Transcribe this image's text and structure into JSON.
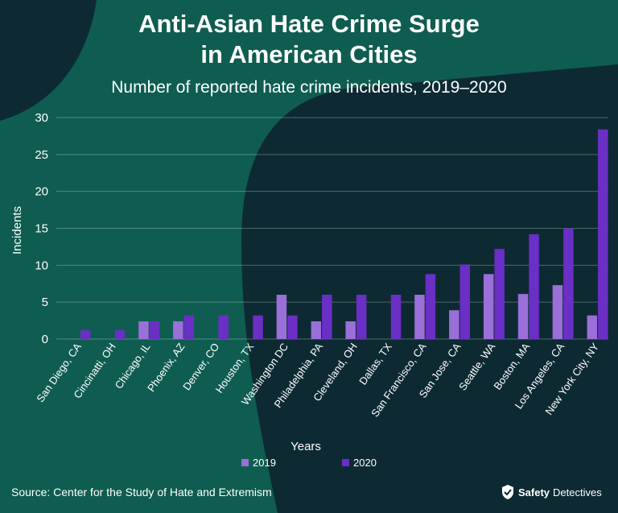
{
  "title_line1": "Anti-Asian Hate Crime Surge",
  "title_line2": "in American Cities",
  "subtitle": "Number of reported hate crime incidents, 2019–2020",
  "source": "Source: Center for the Study of Hate and Extremism",
  "brand": {
    "part1": "Safety",
    "part2": "Detectives",
    "logo_icon": "shield-logo-icon"
  },
  "colors": {
    "background_dark": "#0d2a33",
    "background_green": "#0f5d50",
    "series_2019": "#9a6fd8",
    "series_2020": "#6a2fc4",
    "text": "#ffffff"
  },
  "chart_data": {
    "type": "bar",
    "title": "Anti-Asian Hate Crime Surge in American Cities",
    "subtitle": "Number of reported hate crime incidents, 2019–2020",
    "xlabel": "Years",
    "ylabel": "Incidents",
    "ylim": [
      0,
      30
    ],
    "yticks": [
      0,
      5,
      10,
      15,
      20,
      25,
      30
    ],
    "grid": true,
    "legend_position": "bottom",
    "categories": [
      "San Diego, CA",
      "Cincinatti, OH",
      "Chicago, IL",
      "Phoenix, AZ",
      "Denver, CO",
      "Houston, TX",
      "Washington DC",
      "Philadelphia, PA",
      "Cleveland, OH",
      "Dallas, TX",
      "San Francisco, CA",
      "San Jose, CA",
      "Seattle, WA",
      "Boston, MA",
      "Los Angeles, CA",
      "New York City, NY"
    ],
    "series": [
      {
        "name": "2019",
        "color": "#9a6fd8",
        "values": [
          0,
          0,
          2.4,
          2.4,
          0,
          0,
          6,
          2.4,
          2.4,
          0,
          6,
          3.9,
          8.8,
          6.1,
          7.3,
          3.2
        ]
      },
      {
        "name": "2020",
        "color": "#6a2fc4",
        "values": [
          1.2,
          1.2,
          2.4,
          3.2,
          3.2,
          3.2,
          3.2,
          6,
          6,
          6,
          8.8,
          10.1,
          12.2,
          14.2,
          15,
          28.4
        ]
      }
    ]
  }
}
